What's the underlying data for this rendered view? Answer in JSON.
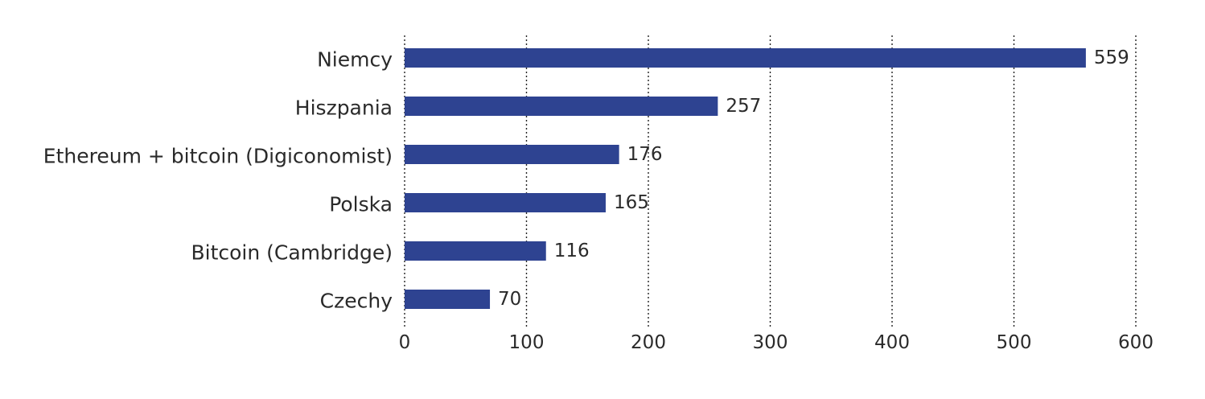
{
  "chart_data": {
    "type": "bar",
    "orientation": "horizontal",
    "categories": [
      "Niemcy",
      "Hiszpania",
      "Ethereum + bitcoin (Digiconomist)",
      "Polska",
      "Bitcoin (Cambridge)",
      "Czechy"
    ],
    "values": [
      559,
      257,
      176,
      165,
      116,
      70
    ],
    "value_labels": [
      "559",
      "257",
      "176",
      "165",
      "116",
      "70"
    ],
    "xlim": [
      0,
      600
    ],
    "x_ticks": [
      0,
      100,
      200,
      300,
      400,
      500,
      600
    ],
    "x_tick_labels": [
      "0",
      "100",
      "200",
      "300",
      "400",
      "500",
      "600"
    ],
    "grid": "vertical-dotted",
    "title": "",
    "xlabel": "",
    "ylabel": "",
    "bar_color": "#2e4391",
    "grid_color": "#222222",
    "text_color": "#2a2a2a"
  }
}
